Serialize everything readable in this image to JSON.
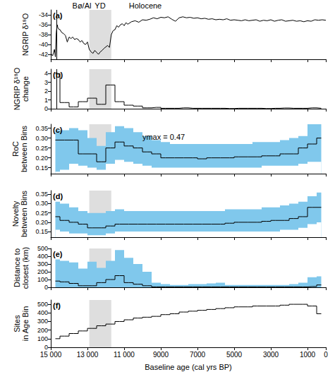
{
  "chart_data": [
    {
      "type": "line",
      "panel_label": "(a)",
      "ylabel": "NGRIP δ¹⁸O",
      "color": "#000000",
      "line_style": "solid",
      "tick_labels": "y",
      "annotations": [
        "Bø/Al",
        "YD",
        "Holocene"
      ],
      "shaded_interval": [
        12900,
        11700
      ],
      "event_line": 14700,
      "xlim": [
        0,
        15000
      ],
      "xticks": [
        {
          "value": 15000,
          "label": "15 000"
        },
        {
          "value": 13000,
          "label": "13 000"
        },
        {
          "value": 11000,
          "label": "11 000"
        },
        9000,
        7000,
        5000,
        3000,
        1000,
        0
      ],
      "ylim": [
        -43,
        -33
      ],
      "yticks": [
        -42,
        -40,
        -38,
        -36,
        -34
      ],
      "x": [
        15000,
        14900,
        14800,
        14750,
        14700,
        14650,
        14600,
        14500,
        14400,
        14300,
        14200,
        14100,
        14000,
        13900,
        13800,
        13700,
        13600,
        13500,
        13400,
        13300,
        13200,
        13100,
        13000,
        12900,
        12800,
        12700,
        12600,
        12500,
        12400,
        12300,
        12200,
        12100,
        12000,
        11900,
        11800,
        11700,
        11600,
        11500,
        11400,
        11300,
        11200,
        11100,
        11000,
        10900,
        10800,
        10600,
        10400,
        10200,
        10000,
        9800,
        9600,
        9400,
        9200,
        9000,
        8800,
        8600,
        8400,
        8200,
        8000,
        7800,
        7600,
        7400,
        7200,
        7000,
        6800,
        6600,
        6400,
        6200,
        6000,
        5800,
        5600,
        5400,
        5200,
        5000,
        4800,
        4600,
        4400,
        4200,
        4000,
        3800,
        3600,
        3400,
        3200,
        3000,
        2800,
        2600,
        2400,
        2200,
        2000,
        1800,
        1600,
        1400,
        1200,
        1000,
        800,
        600,
        400,
        200,
        0
      ],
      "values": [
        -41.8,
        -42.3,
        -41.0,
        -42.5,
        -37.5,
        -36.0,
        -36.8,
        -37.0,
        -37.6,
        -37.8,
        -38.2,
        -39.5,
        -38.5,
        -38.8,
        -38.5,
        -39.0,
        -38.8,
        -39.0,
        -39.5,
        -39.2,
        -39.8,
        -40.0,
        -39.5,
        -41.0,
        -41.5,
        -41.8,
        -41.2,
        -41.6,
        -42.0,
        -41.5,
        -41.2,
        -40.8,
        -40.5,
        -40.2,
        -40.6,
        -38.0,
        -37.2,
        -37.0,
        -36.2,
        -36.5,
        -36.0,
        -35.8,
        -36.2,
        -35.6,
        -35.9,
        -35.4,
        -35.2,
        -35.5,
        -35.0,
        -35.1,
        -34.9,
        -34.6,
        -34.8,
        -34.5,
        -34.6,
        -34.4,
        -34.9,
        -35.3,
        -34.6,
        -34.4,
        -34.6,
        -34.5,
        -34.7,
        -34.6,
        -34.8,
        -34.7,
        -34.9,
        -34.8,
        -35.0,
        -34.9,
        -35.0,
        -34.8,
        -35.1,
        -35.0,
        -35.1,
        -35.2,
        -35.0,
        -35.2,
        -35.1,
        -35.0,
        -35.3,
        -35.1,
        -35.2,
        -35.0,
        -35.3,
        -35.1,
        -35.0,
        -35.3,
        -35.2,
        -35.1,
        -35.3,
        -35.2,
        -35.4,
        -35.2,
        -35.3,
        -35.0,
        -35.1,
        -35.0,
        -35.1
      ]
    },
    {
      "type": "line",
      "panel_label": "(b)",
      "ylabel": "NGRIP δ¹⁸O\nchange",
      "color": "#000000",
      "line_style": "step",
      "tick_labels": "y",
      "shaded_interval": [
        12900,
        11700
      ],
      "event_line": 14700,
      "xlim": [
        0,
        15000
      ],
      "xticks": [
        {
          "value": 15000,
          "label": "15 000"
        },
        {
          "value": 13000,
          "label": "13 000"
        },
        {
          "value": 11000,
          "label": "11 000"
        },
        9000,
        7000,
        5000,
        3000,
        1000,
        0
      ],
      "ylim": [
        0,
        4.5
      ],
      "yticks": [
        0,
        1,
        2,
        3,
        4
      ],
      "x": [
        14750,
        14250,
        13750,
        13250,
        12750,
        12250,
        11750,
        11250,
        10750,
        10250,
        9750,
        9250,
        8750,
        8250,
        7750,
        7250,
        6750,
        6250,
        5750,
        5250,
        4750,
        4250,
        3750,
        3250,
        2750,
        2250,
        1750,
        1250,
        750,
        250
      ],
      "values": [
        4.0,
        0.7,
        0.2,
        0.8,
        1.2,
        0.5,
        2.7,
        0.8,
        0.4,
        0.3,
        0.1,
        0.15,
        0.05,
        0.05,
        0.1,
        0.05,
        0.05,
        0.05,
        0.05,
        0.02,
        0.05,
        0.05,
        0.05,
        0.02,
        0.05,
        0.08,
        0.05,
        0.05,
        0.1,
        0.05
      ]
    },
    {
      "type": "line",
      "panel_label": "(c)",
      "ylabel": "RoC\nbetween Bins",
      "color": "#000000",
      "line_style": "step",
      "tick_labels": "y",
      "annotations": [
        "ymax = 0.47"
      ],
      "band_color": "#80c8ec",
      "shaded_interval": [
        12900,
        11700
      ],
      "xlim": [
        0,
        15000
      ],
      "xticks": [
        {
          "value": 15000,
          "label": "15 000"
        },
        {
          "value": 13000,
          "label": "13 000"
        },
        {
          "value": 11000,
          "label": "11 000"
        },
        9000,
        7000,
        5000,
        3000,
        1000,
        0
      ],
      "ylim": [
        0.12,
        0.37
      ],
      "yticks": [
        0.15,
        {
          "value": 0.2,
          "label": "0.20"
        },
        0.25,
        {
          "value": 0.3,
          "label": "0.30"
        },
        0.35
      ],
      "x": [
        14750,
        14250,
        13750,
        13250,
        12750,
        12250,
        11750,
        11250,
        10750,
        10250,
        9750,
        9250,
        8750,
        8250,
        7750,
        7250,
        6750,
        6250,
        5750,
        5250,
        4750,
        4250,
        3750,
        3250,
        2750,
        2250,
        1750,
        1250,
        750,
        250
      ],
      "values": [
        0.29,
        0.29,
        0.29,
        0.22,
        0.22,
        0.18,
        0.25,
        0.28,
        0.26,
        0.25,
        0.23,
        0.22,
        0.2,
        0.2,
        0.2,
        0.2,
        0.195,
        0.2,
        0.2,
        0.2,
        0.205,
        0.205,
        0.205,
        0.21,
        0.21,
        0.22,
        0.22,
        0.25,
        0.27,
        0.3
      ],
      "band_upper": [
        0.34,
        0.34,
        0.35,
        0.34,
        0.3,
        0.26,
        0.33,
        0.36,
        0.35,
        0.33,
        0.31,
        0.29,
        0.28,
        0.27,
        0.27,
        0.27,
        0.27,
        0.27,
        0.27,
        0.27,
        0.27,
        0.27,
        0.28,
        0.28,
        0.28,
        0.29,
        0.3,
        0.31,
        0.37,
        0.47
      ],
      "band_lower": [
        0.13,
        0.14,
        0.17,
        0.16,
        0.15,
        0.14,
        0.17,
        0.19,
        0.18,
        0.17,
        0.16,
        0.15,
        0.15,
        0.15,
        0.15,
        0.15,
        0.15,
        0.15,
        0.15,
        0.15,
        0.15,
        0.15,
        0.15,
        0.16,
        0.16,
        0.16,
        0.16,
        0.17,
        0.18,
        0.18
      ]
    },
    {
      "type": "line",
      "panel_label": "(d)",
      "ylabel": "Novelty\nbetween Bins",
      "color": "#000000",
      "line_style": "step",
      "tick_labels": "y",
      "band_color": "#80c8ec",
      "shaded_interval": [
        12900,
        11700
      ],
      "xlim": [
        0,
        15000
      ],
      "xticks": [
        {
          "value": 15000,
          "label": "15 000"
        },
        {
          "value": 13000,
          "label": "13 000"
        },
        {
          "value": 11000,
          "label": "11 000"
        },
        9000,
        7000,
        5000,
        3000,
        1000,
        0
      ],
      "ylim": [
        0.12,
        0.37
      ],
      "yticks": [
        0.15,
        {
          "value": 0.2,
          "label": "0.20"
        },
        0.25,
        {
          "value": 0.3,
          "label": "0.30"
        },
        0.35
      ],
      "x": [
        14750,
        14250,
        13750,
        13250,
        12750,
        12250,
        11750,
        11250,
        10750,
        10250,
        9750,
        9250,
        8750,
        8250,
        7750,
        7250,
        6750,
        6250,
        5750,
        5250,
        4750,
        4250,
        3750,
        3250,
        2750,
        2250,
        1750,
        1250,
        750,
        250
      ],
      "values": [
        0.23,
        0.21,
        0.2,
        0.19,
        0.17,
        0.17,
        0.18,
        0.19,
        0.19,
        0.19,
        0.19,
        0.19,
        0.19,
        0.19,
        0.19,
        0.19,
        0.19,
        0.19,
        0.19,
        0.195,
        0.2,
        0.2,
        0.2,
        0.205,
        0.21,
        0.21,
        0.22,
        0.23,
        0.28,
        0.28
      ],
      "band_upper": [
        0.31,
        0.3,
        0.28,
        0.26,
        0.25,
        0.25,
        0.26,
        0.27,
        0.26,
        0.26,
        0.26,
        0.26,
        0.26,
        0.26,
        0.26,
        0.26,
        0.26,
        0.26,
        0.26,
        0.27,
        0.27,
        0.27,
        0.27,
        0.28,
        0.28,
        0.29,
        0.3,
        0.31,
        0.34,
        0.36
      ],
      "band_lower": [
        0.16,
        0.15,
        0.14,
        0.14,
        0.13,
        0.13,
        0.14,
        0.15,
        0.15,
        0.15,
        0.15,
        0.15,
        0.15,
        0.15,
        0.15,
        0.15,
        0.15,
        0.15,
        0.15,
        0.15,
        0.15,
        0.15,
        0.15,
        0.15,
        0.15,
        0.16,
        0.16,
        0.17,
        0.19,
        0.2
      ]
    },
    {
      "type": "line",
      "panel_label": "(e)",
      "ylabel": "Distance to\nclosest (km)",
      "color": "#000000",
      "line_style": "step",
      "tick_labels": "y",
      "band_color": "#80c8ec",
      "shaded_interval": [
        12900,
        11700
      ],
      "xlim": [
        0,
        15000
      ],
      "xticks": [
        {
          "value": 15000,
          "label": "15 000"
        },
        {
          "value": 13000,
          "label": "13 000"
        },
        {
          "value": 11000,
          "label": "11 000"
        },
        9000,
        7000,
        5000,
        3000,
        1000,
        0
      ],
      "ylim": [
        0,
        500
      ],
      "yticks": [
        0,
        100,
        200,
        300,
        400,
        500
      ],
      "x": [
        14750,
        14250,
        13750,
        13250,
        12750,
        12250,
        11750,
        11250,
        10750,
        10250,
        9750,
        9250,
        8750,
        8250,
        7750,
        7250,
        6750,
        6250,
        5750,
        5250,
        4750,
        4250,
        3750,
        3250,
        2750,
        2250,
        1750,
        1250,
        750,
        250
      ],
      "values": [
        80,
        70,
        50,
        20,
        20,
        60,
        100,
        150,
        60,
        40,
        20,
        5,
        5,
        5,
        5,
        5,
        5,
        5,
        5,
        5,
        5,
        5,
        5,
        5,
        5,
        5,
        5,
        5,
        10,
        30
      ],
      "band_upper": [
        360,
        340,
        320,
        240,
        330,
        250,
        340,
        480,
        380,
        300,
        200,
        60,
        40,
        30,
        30,
        40,
        40,
        50,
        60,
        30,
        30,
        30,
        30,
        30,
        30,
        30,
        40,
        60,
        130,
        140
      ],
      "band_lower": [
        0,
        0,
        0,
        0,
        0,
        0,
        0,
        0,
        0,
        0,
        0,
        0,
        0,
        0,
        0,
        0,
        0,
        0,
        0,
        0,
        0,
        0,
        0,
        0,
        0,
        0,
        0,
        0,
        0,
        0
      ]
    },
    {
      "type": "line",
      "panel_label": "(f)",
      "ylabel": "Sites\nin Age Bin",
      "xlabel": "Baseline age (cal yrs BP)",
      "color": "#000000",
      "line_style": "step",
      "shaded_interval": [
        12900,
        11700
      ],
      "xlim": [
        0,
        15000
      ],
      "xticks": [
        {
          "value": 15000,
          "label": "15 000"
        },
        {
          "value": 13000,
          "label": "13 000"
        },
        {
          "value": 11000,
          "label": "11 000"
        },
        9000,
        7000,
        5000,
        3000,
        1000,
        0
      ],
      "ylim": [
        0,
        550
      ],
      "yticks": [
        0,
        100,
        200,
        300,
        400,
        500
      ],
      "x": [
        14750,
        14250,
        13750,
        13250,
        12750,
        12250,
        11750,
        11250,
        10750,
        10250,
        9750,
        9250,
        8750,
        8250,
        7750,
        7250,
        6750,
        6250,
        5750,
        5250,
        4750,
        4250,
        3750,
        3250,
        2750,
        2250,
        1750,
        1250,
        750,
        250
      ],
      "values": [
        100,
        130,
        160,
        190,
        220,
        250,
        270,
        300,
        320,
        340,
        350,
        360,
        380,
        390,
        410,
        420,
        430,
        440,
        450,
        460,
        470,
        470,
        480,
        480,
        480,
        490,
        500,
        500,
        480,
        390
      ]
    }
  ]
}
